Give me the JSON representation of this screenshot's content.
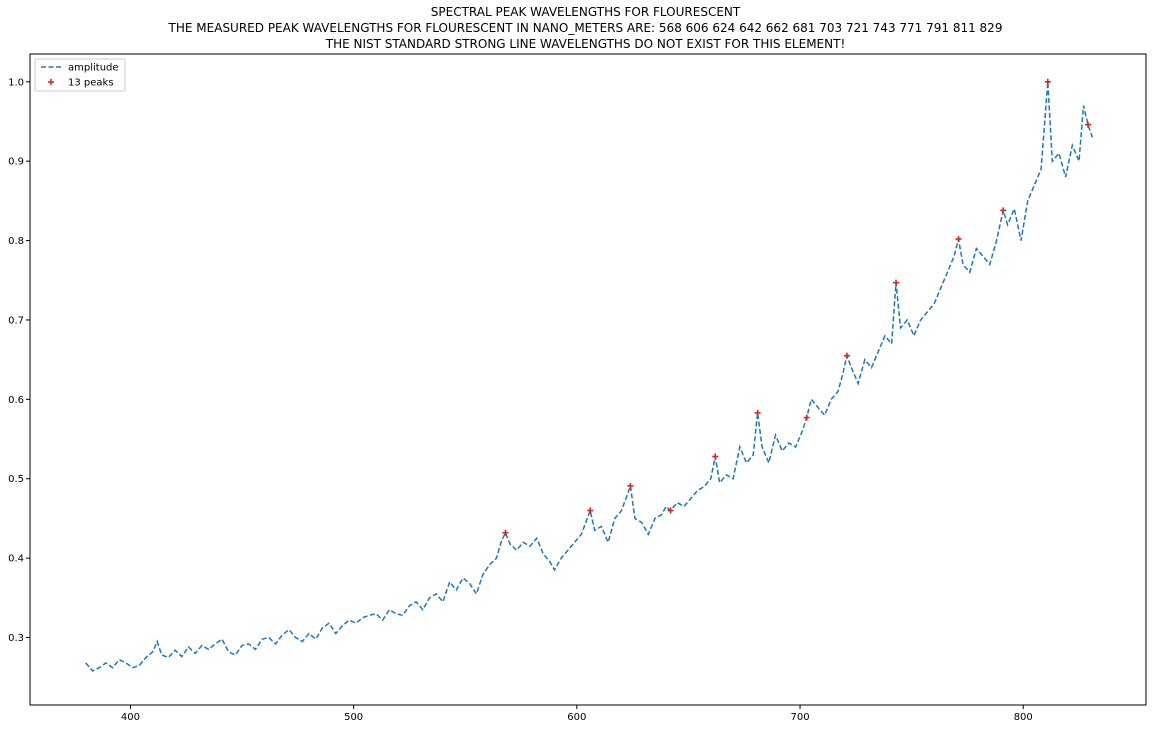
{
  "chart_data": {
    "type": "line",
    "title_lines": [
      "SPECTRAL PEAK WAVELENGTHS FOR FLOURESCENT",
      "THE MEASURED PEAK WAVELENGTHS FOR FLOURESCENT IN NANO_METERS ARE: 568 606 624 642 662 681 703 721 743 771 791 811 829",
      "THE NIST STANDARD STRONG LINE WAVELENGTHS DO NOT EXIST FOR THIS ELEMENT!"
    ],
    "xlabel": "",
    "ylabel": "",
    "xlim": [
      355,
      855
    ],
    "ylim": [
      0.215,
      1.035
    ],
    "x_ticks": [
      400,
      500,
      600,
      700,
      800
    ],
    "y_ticks": [
      0.3,
      0.4,
      0.5,
      0.6,
      0.7,
      0.8,
      0.9,
      1.0
    ],
    "grid": false,
    "legend_position": "top-left",
    "colors": {
      "line": "#1f77b4",
      "peaks": "#d62728"
    },
    "series": [
      {
        "name": "amplitude",
        "style": "dashed",
        "x": [
          380,
          383,
          386,
          389,
          392,
          395,
          398,
          401,
          404,
          407,
          410,
          412,
          414,
          417,
          420,
          423,
          426,
          429,
          432,
          435,
          438,
          441,
          444,
          447,
          450,
          453,
          456,
          459,
          462,
          465,
          468,
          471,
          474,
          477,
          480,
          483,
          486,
          489,
          492,
          495,
          498,
          501,
          504,
          507,
          510,
          513,
          516,
          519,
          522,
          525,
          528,
          531,
          534,
          537,
          540,
          543,
          546,
          549,
          552,
          555,
          558,
          561,
          564,
          566,
          568,
          570,
          573,
          576,
          579,
          582,
          585,
          588,
          590,
          593,
          596,
          599,
          602,
          604,
          606,
          608,
          611,
          614,
          617,
          620,
          622,
          624,
          626,
          629,
          632,
          635,
          638,
          640,
          642,
          645,
          648,
          651,
          654,
          657,
          660,
          662,
          664,
          667,
          670,
          673,
          676,
          679,
          681,
          683,
          686,
          689,
          692,
          695,
          698,
          701,
          703,
          705,
          708,
          711,
          714,
          717,
          719,
          721,
          723,
          726,
          729,
          732,
          735,
          738,
          741,
          743,
          745,
          748,
          751,
          754,
          757,
          760,
          763,
          766,
          769,
          771,
          773,
          776,
          779,
          782,
          785,
          788,
          791,
          793,
          796,
          799,
          802,
          805,
          808,
          811,
          813,
          816,
          819,
          822,
          825,
          827,
          829,
          831
        ],
        "y": [
          0.268,
          0.258,
          0.262,
          0.268,
          0.262,
          0.272,
          0.268,
          0.262,
          0.265,
          0.275,
          0.282,
          0.295,
          0.278,
          0.275,
          0.284,
          0.276,
          0.288,
          0.28,
          0.29,
          0.285,
          0.292,
          0.298,
          0.282,
          0.278,
          0.29,
          0.292,
          0.285,
          0.298,
          0.3,
          0.292,
          0.303,
          0.31,
          0.3,
          0.295,
          0.305,
          0.298,
          0.312,
          0.318,
          0.305,
          0.315,
          0.322,
          0.318,
          0.325,
          0.328,
          0.33,
          0.322,
          0.335,
          0.33,
          0.328,
          0.34,
          0.345,
          0.335,
          0.35,
          0.355,
          0.345,
          0.37,
          0.36,
          0.375,
          0.368,
          0.355,
          0.38,
          0.392,
          0.4,
          0.42,
          0.432,
          0.418,
          0.41,
          0.42,
          0.415,
          0.425,
          0.405,
          0.395,
          0.385,
          0.4,
          0.41,
          0.42,
          0.43,
          0.445,
          0.46,
          0.435,
          0.44,
          0.42,
          0.45,
          0.46,
          0.475,
          0.491,
          0.45,
          0.445,
          0.43,
          0.45,
          0.455,
          0.465,
          0.46,
          0.47,
          0.465,
          0.475,
          0.485,
          0.49,
          0.5,
          0.528,
          0.495,
          0.505,
          0.5,
          0.54,
          0.52,
          0.53,
          0.583,
          0.54,
          0.52,
          0.555,
          0.535,
          0.545,
          0.54,
          0.56,
          0.577,
          0.6,
          0.59,
          0.58,
          0.6,
          0.61,
          0.63,
          0.655,
          0.64,
          0.62,
          0.65,
          0.64,
          0.66,
          0.68,
          0.67,
          0.747,
          0.69,
          0.7,
          0.68,
          0.7,
          0.71,
          0.72,
          0.74,
          0.76,
          0.78,
          0.802,
          0.77,
          0.76,
          0.79,
          0.78,
          0.77,
          0.8,
          0.838,
          0.82,
          0.84,
          0.8,
          0.85,
          0.87,
          0.89,
          1.0,
          0.9,
          0.91,
          0.88,
          0.92,
          0.9,
          0.97,
          0.946,
          0.93
        ]
      },
      {
        "name": "13 peaks",
        "style": "plus-markers",
        "x": [
          568,
          606,
          624,
          642,
          662,
          681,
          703,
          721,
          743,
          771,
          791,
          811,
          829
        ],
        "y": [
          0.432,
          0.46,
          0.491,
          0.46,
          0.528,
          0.583,
          0.577,
          0.655,
          0.747,
          0.802,
          0.838,
          1.0,
          0.946
        ]
      }
    ]
  }
}
